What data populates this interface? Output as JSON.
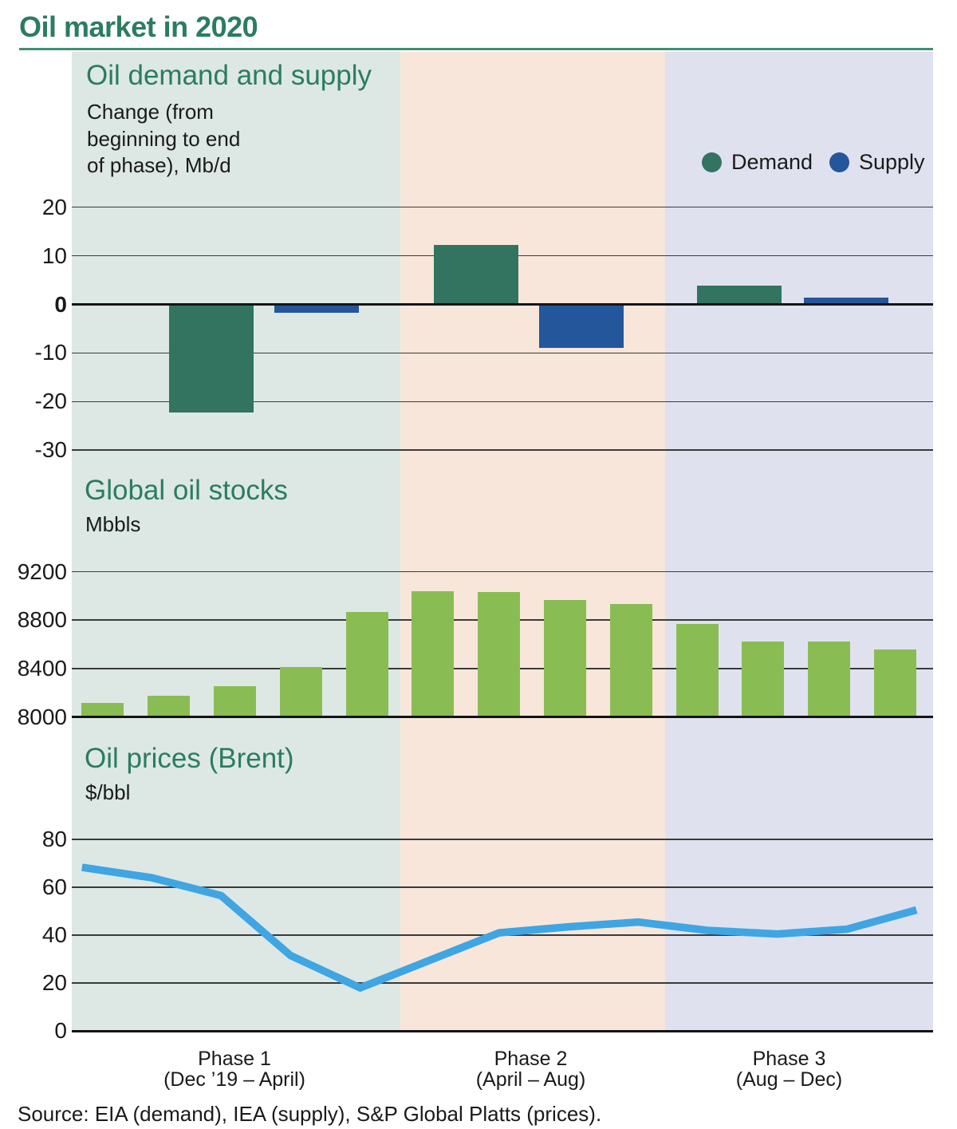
{
  "page": {
    "title": "Oil market in 2020",
    "source_note": "Source: EIA (demand), IEA (supply), S&P Global Platts (prices)."
  },
  "colors": {
    "title_green": "#2b7c61",
    "rule_green": "#3f8f70",
    "demand_green": "#32745f",
    "supply_blue": "#23569b",
    "stocks_green": "#8abc54",
    "price_blue": "#3fa5e3",
    "band_phase1": "#dde8e4",
    "band_phase2": "#f9e6da",
    "band_phase3": "#dfe2ee",
    "gridline": "#3a3a3a",
    "axis_line": "#141414",
    "text_dark": "#1a1a1a"
  },
  "phases": [
    {
      "label": "Phase 1",
      "range": "(Dec ’19 – April)"
    },
    {
      "label": "Phase 2",
      "range": "(April – Aug)"
    },
    {
      "label": "Phase 3",
      "range": "(Aug – Dec)"
    }
  ],
  "legend": {
    "items": [
      {
        "label": "Demand",
        "color": "#32745f"
      },
      {
        "label": "Supply",
        "color": "#23569b"
      }
    ]
  },
  "chart_data": [
    {
      "type": "bar",
      "title": "Oil demand and supply",
      "subtitle": "Change (from\nbeginning to end\nof phase), Mb/d",
      "ylabel": "Mb/d",
      "categories": [
        "Phase 1",
        "Phase 2",
        "Phase 3"
      ],
      "series": [
        {
          "name": "Demand",
          "color": "#32745f",
          "values": [
            -22.3,
            12.2,
            3.8
          ]
        },
        {
          "name": "Supply",
          "color": "#23569b",
          "values": [
            -1.7,
            -8.9,
            1.4
          ]
        }
      ],
      "ylim": [
        -33,
        22
      ],
      "yticks": [
        20,
        10,
        0,
        -10,
        -20,
        -30
      ],
      "bold_tick": 0,
      "grid": true,
      "legend_position": "top-right"
    },
    {
      "type": "bar",
      "title": "Global oil stocks",
      "subtitle": "Mbbls",
      "ylabel": "Mbbls",
      "values": [
        8115,
        8175,
        8255,
        8410,
        8865,
        9040,
        9030,
        8965,
        8930,
        8770,
        8625,
        8625,
        8555
      ],
      "ylim": [
        8000,
        9250
      ],
      "yticks": [
        9200,
        8800,
        8400,
        8000
      ],
      "grid": true
    },
    {
      "type": "line",
      "title": "Oil prices (Brent)",
      "subtitle": "$/bbl",
      "ylabel": "$/bbl",
      "values": [
        68.3,
        64,
        56.5,
        31.5,
        18,
        29.5,
        41,
        43.5,
        45.5,
        42,
        40.5,
        42.5,
        50.5
      ],
      "ylim": [
        0,
        85
      ],
      "yticks": [
        80,
        60,
        40,
        20,
        0
      ],
      "grid": true
    }
  ]
}
